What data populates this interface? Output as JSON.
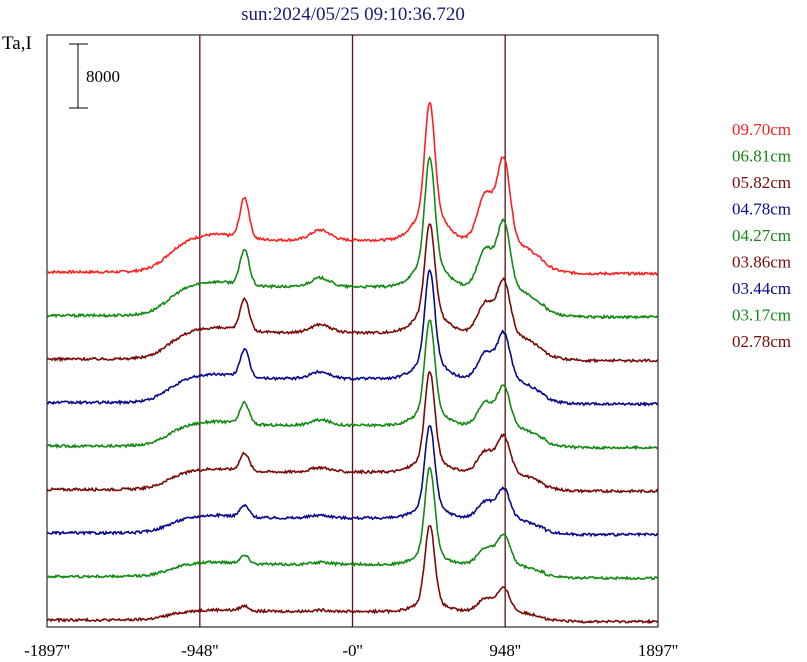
{
  "chart_data": {
    "type": "line",
    "title": "sun:2024/05/25 09:10:36.720",
    "ylabel": "Ta,I",
    "scale_bar": {
      "label": "8000",
      "value": 8000
    },
    "x_tick_labels": [
      "-1897''",
      "-948''",
      "-0''",
      "948''",
      "1897''"
    ],
    "x_ticks": [
      -1897,
      -948,
      0,
      948,
      1897
    ],
    "xlim": [
      -1897,
      1897
    ],
    "vertical_lines": [
      -948,
      0,
      948
    ],
    "grid": false,
    "legend_position": "right",
    "colors": {
      "red": "#ff2020",
      "green": "#138a13",
      "darkred": "#7a0a0a",
      "blue": "#0a0a8c",
      "title": "#1a1a7a",
      "axis": "#000000",
      "vline": "#5a1010"
    },
    "series": [
      {
        "name": "09.70cm",
        "color": "#ff2020",
        "offset": 8,
        "base": 0.0,
        "s_left": 0.55,
        "s_mid": 0.45,
        "s_peak": 1.0,
        "s_right": 1.0,
        "peak_amp": 3.3,
        "right_amp": 2.5,
        "left_amp": 1.25
      },
      {
        "name": "06.81cm",
        "color": "#138a13",
        "offset": 7,
        "base": 0.0,
        "s_left": 0.5,
        "s_mid": 0.4,
        "s_peak": 0.85,
        "s_right": 0.85,
        "peak_amp": 3.2,
        "right_amp": 2.0,
        "left_amp": 1.1
      },
      {
        "name": "05.82cm",
        "color": "#7a0a0a",
        "offset": 6,
        "base": 0.0,
        "s_left": 0.45,
        "s_mid": 0.38,
        "s_peak": 0.7,
        "s_right": 0.75,
        "peak_amp": 2.7,
        "right_amp": 1.6,
        "left_amp": 1.0
      },
      {
        "name": "04.78cm",
        "color": "#0a0a8c",
        "offset": 5,
        "base": 0.0,
        "s_left": 0.4,
        "s_mid": 0.35,
        "s_peak": 0.6,
        "s_right": 0.65,
        "peak_amp": 2.8,
        "right_amp": 1.4,
        "left_amp": 0.85
      },
      {
        "name": "04.27cm",
        "color": "#138a13",
        "offset": 4,
        "base": 0.0,
        "s_left": 0.35,
        "s_mid": 0.3,
        "s_peak": 0.5,
        "s_right": 0.55,
        "peak_amp": 2.8,
        "right_amp": 1.2,
        "left_amp": 0.65
      },
      {
        "name": "03.86cm",
        "color": "#7a0a0a",
        "offset": 3,
        "base": 0.0,
        "s_left": 0.3,
        "s_mid": 0.25,
        "s_peak": 0.45,
        "s_right": 0.5,
        "peak_amp": 2.7,
        "right_amp": 1.1,
        "left_amp": 0.55
      },
      {
        "name": "03.44cm",
        "color": "#0a0a8c",
        "offset": 2,
        "base": 0.0,
        "s_left": 0.25,
        "s_mid": 0.22,
        "s_peak": 0.4,
        "s_right": 0.45,
        "peak_amp": 2.5,
        "right_amp": 0.9,
        "left_amp": 0.35
      },
      {
        "name": "03.17cm",
        "color": "#138a13",
        "offset": 1,
        "base": 0.0,
        "s_left": 0.2,
        "s_mid": 0.18,
        "s_peak": 0.35,
        "s_right": 0.4,
        "peak_amp": 2.7,
        "right_amp": 0.9,
        "left_amp": 0.25
      },
      {
        "name": "02.78cm",
        "color": "#7a0a0a",
        "offset": 0,
        "base": 0.0,
        "s_left": 0.15,
        "s_mid": 0.12,
        "s_peak": 0.3,
        "s_right": 0.35,
        "peak_amp": 2.4,
        "right_amp": 0.7,
        "left_amp": 0.15
      }
    ]
  }
}
